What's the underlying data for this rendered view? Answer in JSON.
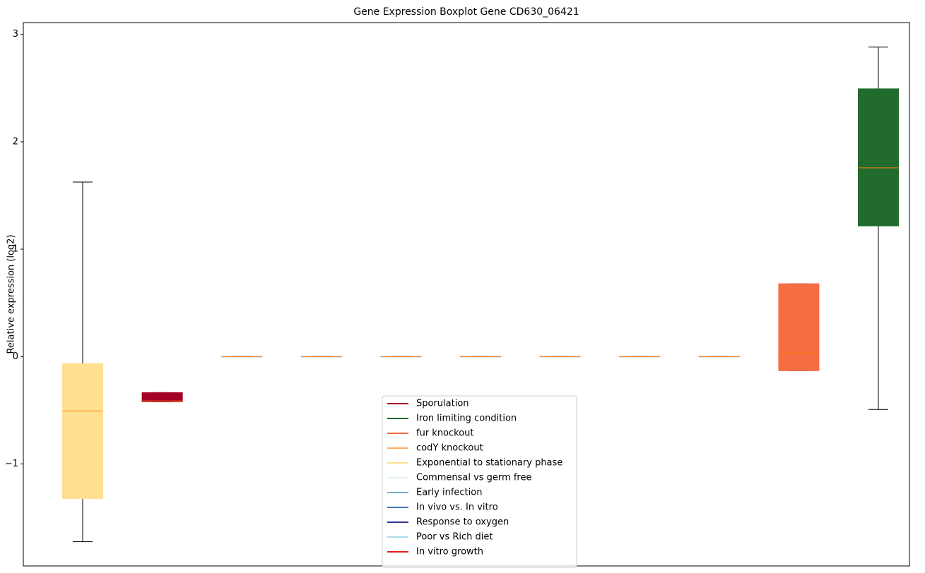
{
  "chart_data": {
    "type": "boxplot",
    "title": "Gene Expression Boxplot Gene CD630_06421",
    "y_label": "Relative expression (log2)",
    "ylim": [
      -1.95,
      3.11
    ],
    "yticks": [
      {
        "value": -1,
        "label": "−1"
      },
      0,
      1,
      2,
      3
    ],
    "median_color": "#ff7f0e",
    "boxes": [
      {
        "low": -1.724,
        "q1": -1.322,
        "median": -0.507,
        "q3": -0.066,
        "high": 1.625,
        "color": "#fee090"
      },
      {
        "low": -0.421,
        "q1": -0.421,
        "median": -0.414,
        "q3": -0.336,
        "high": -0.336,
        "color": "#a50026"
      },
      {
        "low": 0,
        "q1": 0,
        "median": 0,
        "q3": 0,
        "high": 0
      },
      {
        "low": 0,
        "q1": 0,
        "median": 0,
        "q3": 0,
        "high": 0
      },
      {
        "low": 0,
        "q1": 0,
        "median": 0,
        "q3": 0,
        "high": 0
      },
      {
        "low": 0,
        "q1": 0,
        "median": 0,
        "q3": 0,
        "high": 0
      },
      {
        "low": 0,
        "q1": 0,
        "median": 0,
        "q3": 0,
        "high": 0
      },
      {
        "low": 0,
        "q1": 0,
        "median": 0,
        "q3": 0,
        "high": 0
      },
      {
        "low": 0,
        "q1": 0,
        "median": 0,
        "q3": 0,
        "high": 0
      },
      {
        "low": -0.132,
        "q1": -0.132,
        "median": 0.033,
        "q3": 0.678,
        "high": 0.678,
        "color": "#f46d43"
      },
      {
        "low": -0.493,
        "q1": 1.217,
        "median": 1.757,
        "q3": 2.493,
        "high": 2.882,
        "color": "#216b2c"
      }
    ],
    "legend": [
      {
        "name": "Sporulation",
        "color": "#a50026"
      },
      {
        "name": "Iron limiting condition",
        "color": "#216b2c"
      },
      {
        "name": "fur knockout",
        "color": "#f46d43"
      },
      {
        "name": "codY knockout",
        "color": "#fdae61"
      },
      {
        "name": "Exponential to stationary phase",
        "color": "#fee090"
      },
      {
        "name": "Commensal vs germ free",
        "color": "#e0f3f8"
      },
      {
        "name": "Early infection",
        "color": "#74add1"
      },
      {
        "name": "In vivo vs. In vitro",
        "color": "#4575b4"
      },
      {
        "name": "Response to oxygen",
        "color": "#313695"
      },
      {
        "name": "Poor vs Rich diet",
        "color": "#abd9e9"
      },
      {
        "name": "In vitro growth",
        "color": "#e31a1c"
      }
    ]
  }
}
